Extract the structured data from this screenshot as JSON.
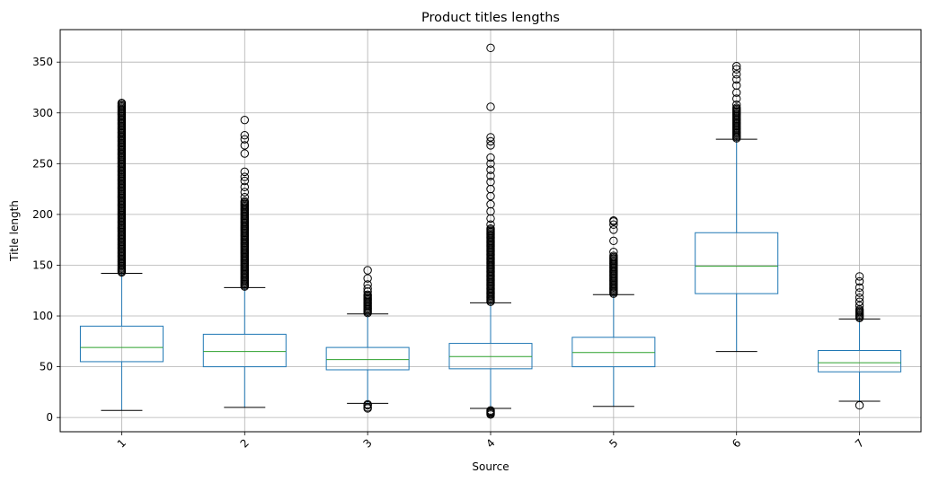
{
  "chart_data": {
    "type": "boxplot",
    "title": "Product titles lengths",
    "xlabel": "Source",
    "ylabel": "Title length",
    "categories": [
      "1",
      "2",
      "3",
      "4",
      "5",
      "6",
      "7"
    ],
    "ylim": [
      -14,
      382
    ],
    "yticks": [
      0,
      50,
      100,
      150,
      200,
      250,
      300,
      350
    ],
    "grid": true,
    "xtick_rotation": 45,
    "colors": {
      "box": "#1f77b4",
      "median": "#2ca02c",
      "whisker_cap": "#000000",
      "grid": "#b0b0b0"
    },
    "series": [
      {
        "name": "1",
        "whisker_low": 7,
        "q1": 55,
        "median": 69,
        "q3": 90,
        "whisker_high": 142,
        "outliers": [],
        "outlier_band": [
          143,
          310
        ]
      },
      {
        "name": "2",
        "whisker_low": 10,
        "q1": 50,
        "median": 65,
        "q3": 82,
        "whisker_high": 128,
        "outliers": [
          217,
          222,
          227,
          233,
          237,
          242,
          260,
          268,
          274,
          278,
          293
        ],
        "outlier_band": [
          129,
          214
        ]
      },
      {
        "name": "3",
        "whisker_low": 14,
        "q1": 47,
        "median": 57,
        "q3": 69,
        "whisker_high": 102,
        "outliers": [
          9,
          10,
          12,
          13,
          124,
          127,
          131,
          137,
          145
        ],
        "outlier_band": [
          103,
          122
        ]
      },
      {
        "name": "4",
        "whisker_low": 9,
        "q1": 48,
        "median": 60,
        "q3": 73,
        "whisker_high": 113,
        "outliers": [
          3,
          4,
          5,
          6,
          7,
          190,
          196,
          203,
          210,
          218,
          225,
          232,
          238,
          244,
          250,
          256,
          268,
          272,
          276,
          306,
          364
        ],
        "outlier_band": [
          114,
          186
        ]
      },
      {
        "name": "5",
        "whisker_low": 11,
        "q1": 50,
        "median": 64,
        "q3": 79,
        "whisker_high": 121,
        "outliers": [
          163,
          174,
          185,
          190,
          193,
          194
        ],
        "outlier_band": [
          122,
          160
        ]
      },
      {
        "name": "6",
        "whisker_low": 65,
        "q1": 122,
        "median": 149,
        "q3": 182,
        "whisker_high": 274,
        "outliers": [
          308,
          314,
          320,
          327,
          333,
          338,
          343,
          346
        ],
        "outlier_band": [
          275,
          305
        ]
      },
      {
        "name": "7",
        "whisker_low": 16,
        "q1": 45,
        "median": 54,
        "q3": 66,
        "whisker_high": 97,
        "outliers": [
          12,
          110,
          114,
          118,
          123,
          128,
          134,
          139
        ],
        "outlier_band": [
          98,
          107
        ]
      }
    ]
  }
}
